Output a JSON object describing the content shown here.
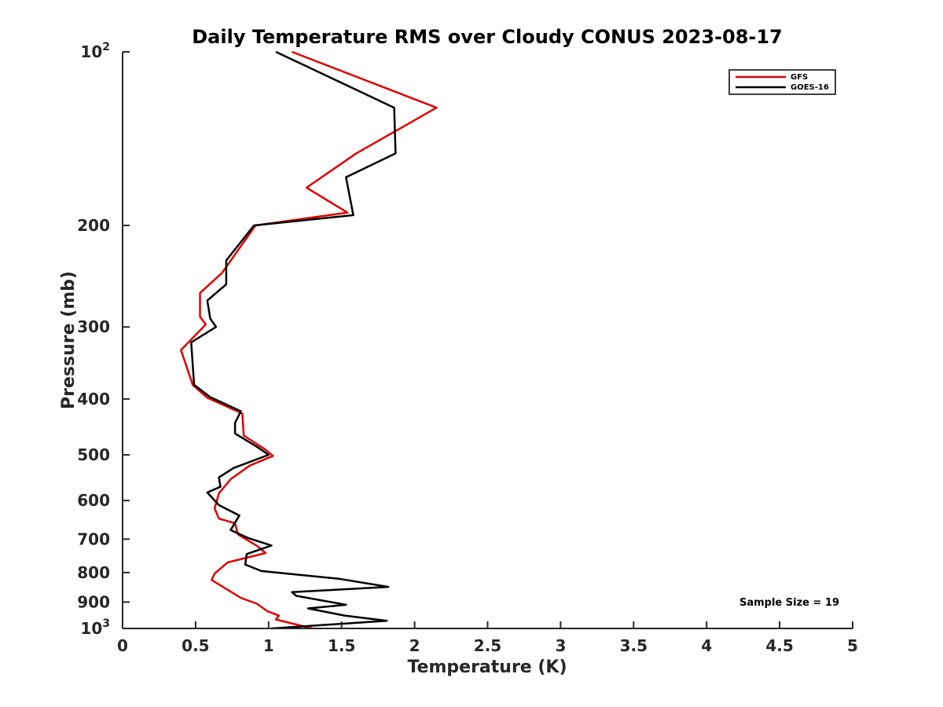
{
  "chart_data": {
    "type": "line",
    "title": "Daily Temperature RMS over Cloudy CONUS 2023-08-17",
    "xlabel": "Temperature (K)",
    "ylabel": "Pressure (mb)",
    "xlim": [
      0,
      5
    ],
    "ylim": [
      100,
      1000
    ],
    "y_scale": "log",
    "y_reversed": true,
    "grid": false,
    "legend_position": "top-right",
    "x_ticks": [
      0,
      0.5,
      1,
      1.5,
      2,
      2.5,
      3,
      3.5,
      4,
      4.5,
      5
    ],
    "x_tick_labels": [
      "0",
      "0.5",
      "1",
      "1.5",
      "2",
      "2.5",
      "3",
      "3.5",
      "4",
      "4.5",
      "5"
    ],
    "y_ticks": [
      {
        "value": 100,
        "base": "10",
        "exp": "2"
      },
      {
        "value": 200,
        "label": "200"
      },
      {
        "value": 300,
        "label": "300"
      },
      {
        "value": 400,
        "label": "400"
      },
      {
        "value": 500,
        "label": "500"
      },
      {
        "value": 600,
        "label": "600"
      },
      {
        "value": 700,
        "label": "700"
      },
      {
        "value": 800,
        "label": "800"
      },
      {
        "value": 900,
        "label": "900"
      },
      {
        "value": 1000,
        "base": "10",
        "exp": "3"
      }
    ],
    "series": [
      {
        "name": "GFS",
        "color": "#e00000",
        "points": [
          [
            1.16,
            100
          ],
          [
            2.15,
            125
          ],
          [
            1.6,
            150
          ],
          [
            1.26,
            172
          ],
          [
            1.54,
            190
          ],
          [
            0.91,
            200
          ],
          [
            0.68,
            242
          ],
          [
            0.53,
            262
          ],
          [
            0.53,
            288
          ],
          [
            0.57,
            297
          ],
          [
            0.4,
            329
          ],
          [
            0.48,
            378
          ],
          [
            0.58,
            398
          ],
          [
            0.82,
            424
          ],
          [
            0.83,
            463
          ],
          [
            0.97,
            488
          ],
          [
            1.03,
            502
          ],
          [
            0.87,
            522
          ],
          [
            0.74,
            551
          ],
          [
            0.66,
            583
          ],
          [
            0.63,
            619
          ],
          [
            0.66,
            645
          ],
          [
            0.77,
            657
          ],
          [
            0.79,
            687
          ],
          [
            0.92,
            719
          ],
          [
            0.98,
            740
          ],
          [
            0.72,
            768
          ],
          [
            0.63,
            803
          ],
          [
            0.61,
            824
          ],
          [
            0.81,
            885
          ],
          [
            0.92,
            906
          ],
          [
            0.99,
            933
          ],
          [
            1.07,
            950
          ],
          [
            1.05,
            965
          ],
          [
            1.3,
            1000
          ]
        ]
      },
      {
        "name": "GOES-16",
        "color": "#000000",
        "points": [
          [
            1.05,
            100
          ],
          [
            1.86,
            125
          ],
          [
            1.87,
            150
          ],
          [
            1.53,
            165
          ],
          [
            1.58,
            192
          ],
          [
            0.9,
            200
          ],
          [
            0.71,
            230
          ],
          [
            0.71,
            253
          ],
          [
            0.58,
            270
          ],
          [
            0.6,
            290
          ],
          [
            0.64,
            300
          ],
          [
            0.47,
            319
          ],
          [
            0.49,
            378
          ],
          [
            0.6,
            397
          ],
          [
            0.81,
            420
          ],
          [
            0.77,
            440
          ],
          [
            0.77,
            459
          ],
          [
            0.92,
            484
          ],
          [
            1.0,
            500
          ],
          [
            0.76,
            527
          ],
          [
            0.66,
            547
          ],
          [
            0.67,
            568
          ],
          [
            0.58,
            581
          ],
          [
            0.66,
            611
          ],
          [
            0.8,
            637
          ],
          [
            0.74,
            675
          ],
          [
            0.86,
            697
          ],
          [
            1.02,
            718
          ],
          [
            0.85,
            743
          ],
          [
            0.84,
            775
          ],
          [
            0.95,
            795
          ],
          [
            1.48,
            820
          ],
          [
            1.82,
            847
          ],
          [
            1.16,
            865
          ],
          [
            1.19,
            878
          ],
          [
            1.53,
            910
          ],
          [
            1.27,
            923
          ],
          [
            1.52,
            950
          ],
          [
            1.81,
            970
          ],
          [
            1.02,
            1000
          ]
        ]
      }
    ],
    "annotations": [
      {
        "text": "Sample Size = 19"
      }
    ]
  }
}
